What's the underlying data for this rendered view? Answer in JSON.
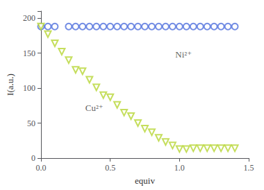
{
  "chart_data": {
    "type": "scatter",
    "x_label": "equiv",
    "y_label": "I(a.u.)",
    "series": [
      {
        "name": "Ni²⁺",
        "marker": "circle",
        "x": [
          0.0,
          0.05,
          0.1,
          0.2,
          0.25,
          0.3,
          0.35,
          0.4,
          0.45,
          0.5,
          0.55,
          0.6,
          0.65,
          0.7,
          0.75,
          0.8,
          0.85,
          0.9,
          0.95,
          1.0,
          1.05,
          1.1,
          1.15,
          1.2,
          1.25,
          1.3,
          1.35,
          1.4
        ],
        "values": [
          188,
          188,
          188,
          188,
          188,
          188,
          188,
          188,
          188,
          188,
          188,
          188,
          188,
          188,
          188,
          188,
          188,
          188,
          188,
          188,
          188,
          188,
          188,
          188,
          188,
          188,
          188,
          188
        ]
      },
      {
        "name": "Cu²⁺",
        "marker": "triangle_down",
        "x": [
          0.0,
          0.05,
          0.1,
          0.15,
          0.2,
          0.25,
          0.3,
          0.35,
          0.4,
          0.45,
          0.5,
          0.55,
          0.6,
          0.65,
          0.7,
          0.75,
          0.8,
          0.85,
          0.9,
          0.95,
          1.0,
          1.05,
          1.1,
          1.15,
          1.2,
          1.25,
          1.3,
          1.35,
          1.4
        ],
        "values": [
          188,
          177,
          164,
          152,
          140,
          126,
          124,
          112,
          101,
          90,
          87,
          76,
          65,
          60,
          50,
          42,
          37,
          29,
          23,
          18,
          13,
          13,
          14,
          14,
          14,
          14,
          14,
          14,
          14
        ]
      }
    ],
    "annotations": [
      {
        "text": "Ni²⁺",
        "x": 0.97,
        "y": 148
      },
      {
        "text": "Cu²⁺",
        "x": 0.32,
        "y": 72
      }
    ],
    "xlim": [
      0,
      1.5
    ],
    "xticks": [
      {
        "value": 0,
        "label": "0.0"
      },
      0.5,
      {
        "value": 1,
        "label": "1.0"
      },
      1.5
    ],
    "ylim": [
      0,
      210
    ],
    "yticks": [
      0,
      50,
      100,
      150,
      200
    ],
    "grid": false
  }
}
